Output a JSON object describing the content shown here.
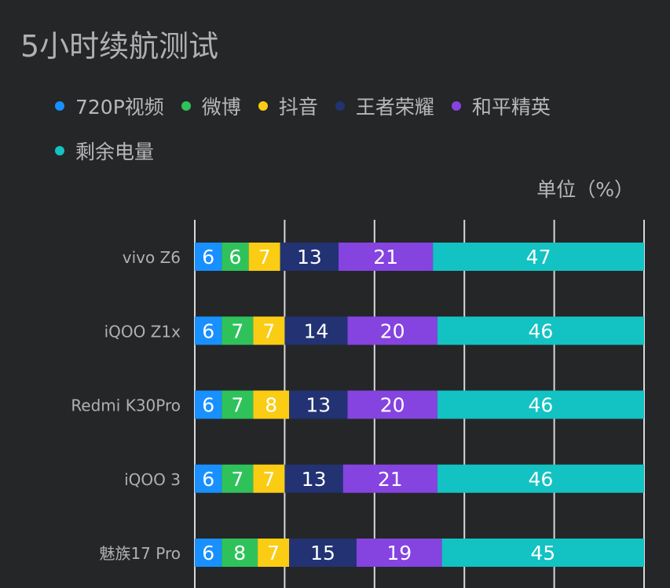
{
  "chart_data": {
    "type": "bar",
    "orientation": "horizontal",
    "stacked": true,
    "title": "5小时续航测试",
    "unit_label": "单位（%）",
    "categories": [
      "vivo Z6",
      "iQOO Z1x",
      "Redmi K30Pro",
      "iQOO 3",
      "魅族17 Pro"
    ],
    "series": [
      {
        "name": "720P视频",
        "color": "#1890FF",
        "values": [
          6,
          6,
          6,
          6,
          6
        ]
      },
      {
        "name": "微博",
        "color": "#2FC25B",
        "values": [
          6,
          7,
          7,
          7,
          8
        ]
      },
      {
        "name": "抖音",
        "color": "#FACC14",
        "values": [
          7,
          7,
          8,
          7,
          7
        ]
      },
      {
        "name": "王者荣耀",
        "color": "#223273",
        "values": [
          13,
          14,
          13,
          13,
          15
        ]
      },
      {
        "name": "和平精英",
        "color": "#8543E0",
        "values": [
          21,
          20,
          20,
          21,
          19
        ]
      },
      {
        "name": "剩余电量",
        "color": "#13C2C2",
        "values": [
          47,
          46,
          46,
          46,
          45
        ]
      }
    ],
    "xlim": [
      0,
      100
    ],
    "grid": true,
    "legend_position": "top-left",
    "data_labels": true
  }
}
